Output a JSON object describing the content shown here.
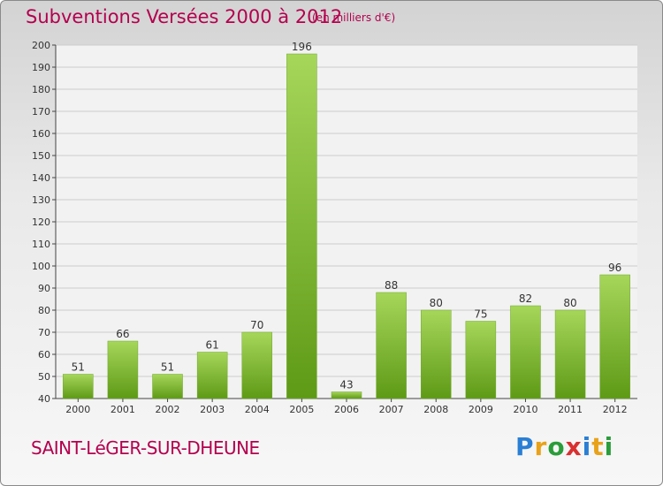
{
  "header": {
    "title": "Subventions Versées 2000 à 2012",
    "units": "(en milliers d'€)"
  },
  "footer": {
    "commune": "SAINT-LéGER-SUR-DHEUNE",
    "logo_letters": [
      {
        "ch": "P",
        "color": "#2a7fd4"
      },
      {
        "ch": "r",
        "color": "#e8a21a"
      },
      {
        "ch": "o",
        "color": "#2a9d3a"
      },
      {
        "ch": "x",
        "color": "#d93030"
      },
      {
        "ch": "i",
        "color": "#2a7fd4"
      },
      {
        "ch": "t",
        "color": "#e8a21a"
      },
      {
        "ch": "i",
        "color": "#2a9d3a"
      }
    ]
  },
  "colors": {
    "accent": "#b4004e",
    "bar_light": "#a6d65a",
    "bar_dark": "#5e9a16",
    "grid": "#cccccc"
  },
  "chart_data": {
    "type": "bar",
    "title": "Subventions Versées 2000 à 2012",
    "xlabel": "",
    "ylabel": "",
    "categories": [
      "2000",
      "2001",
      "2002",
      "2003",
      "2004",
      "2005",
      "2006",
      "2007",
      "2008",
      "2009",
      "2010",
      "2011",
      "2012"
    ],
    "values": [
      51,
      66,
      51,
      61,
      70,
      196,
      43,
      88,
      80,
      75,
      82,
      80,
      96
    ],
    "ylim": [
      40,
      200
    ],
    "yticks": [
      40,
      50,
      60,
      70,
      80,
      90,
      100,
      110,
      120,
      130,
      140,
      150,
      160,
      170,
      180,
      190,
      200
    ],
    "grid": true
  }
}
